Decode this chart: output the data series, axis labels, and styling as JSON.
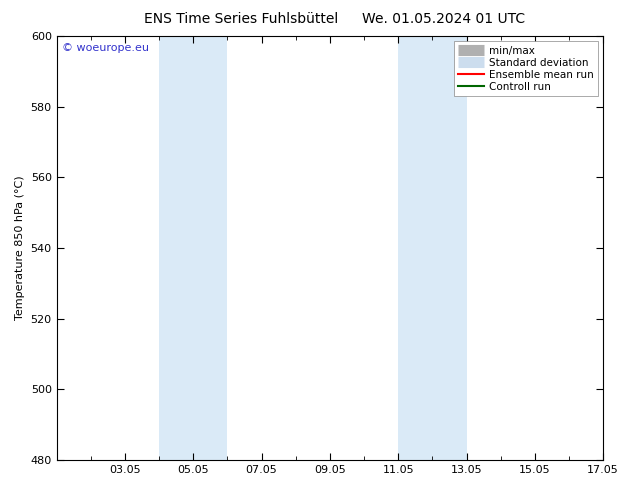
{
  "title_left": "ENS Time Series Fuhlsbüttel",
  "title_right": "We. 01.05.2024 01 UTC",
  "ylabel": "Temperature 850 hPa (°C)",
  "ylim": [
    480,
    600
  ],
  "yticks": [
    480,
    500,
    520,
    540,
    560,
    580,
    600
  ],
  "xtick_labels": [
    "03.05",
    "05.05",
    "07.05",
    "09.05",
    "11.05",
    "13.05",
    "15.05",
    "17.05"
  ],
  "xtick_label_positions": [
    3,
    5,
    7,
    9,
    11,
    13,
    15,
    17
  ],
  "xtick_minor_positions": [
    1,
    2,
    3,
    4,
    5,
    6,
    7,
    8,
    9,
    10,
    11,
    12,
    13,
    14,
    15,
    16,
    17
  ],
  "xlim": [
    1,
    17
  ],
  "shaded_bands": [
    {
      "x_start": 4,
      "x_end": 6
    },
    {
      "x_start": 11,
      "x_end": 13
    }
  ],
  "shaded_color": "#daeaf7",
  "background_color": "#ffffff",
  "plot_bg_color": "#ffffff",
  "watermark_text": "© woeurope.eu",
  "watermark_color": "#3333cc",
  "legend_items": [
    {
      "label": "min/max",
      "color": "#b0b0b0",
      "style": "hbar"
    },
    {
      "label": "Standard deviation",
      "color": "#ccddee",
      "style": "hbar"
    },
    {
      "label": "Ensemble mean run",
      "color": "#ff0000",
      "style": "line"
    },
    {
      "label": "Controll run",
      "color": "#006600",
      "style": "line"
    }
  ],
  "font_size_title": 10,
  "font_size_axis": 8,
  "font_size_legend": 7.5,
  "font_size_watermark": 8
}
